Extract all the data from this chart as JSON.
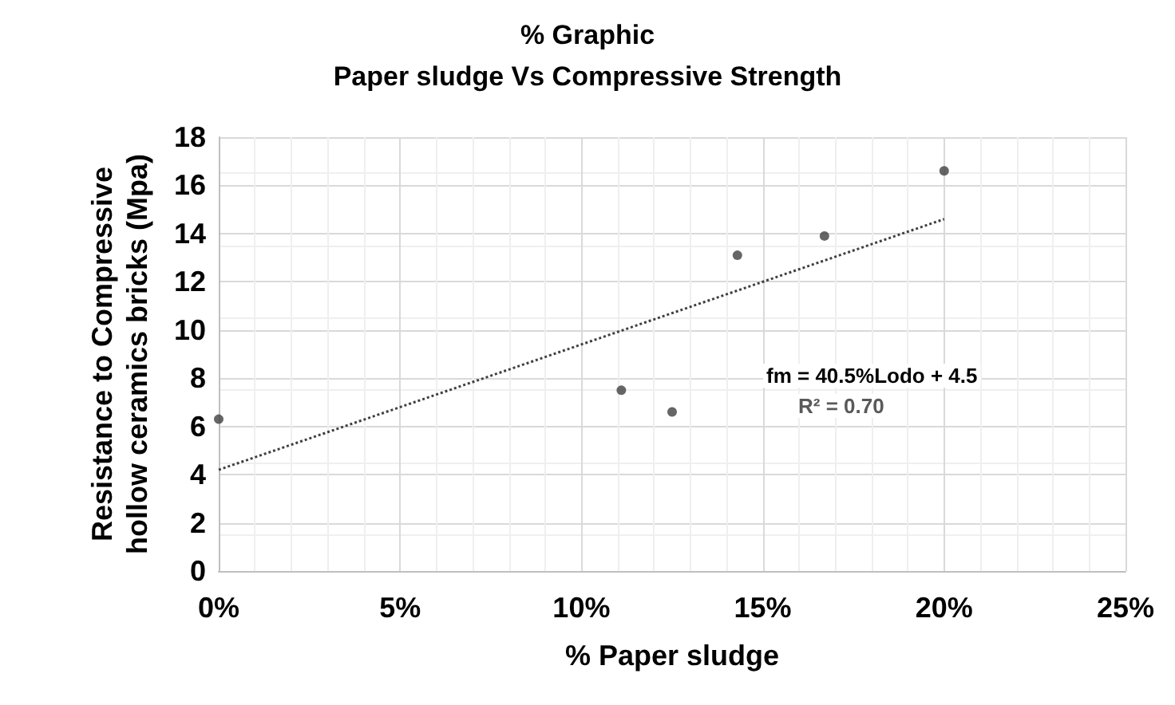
{
  "chart_data": {
    "type": "scatter",
    "title": "% Graphic\nPaper sludge Vs Compressive Strength",
    "xlabel": "% Paper sludge",
    "ylabel": "Resistance to Compressive\nhollow ceramics bricks (Mpa)",
    "xlim": [
      0,
      0.25
    ],
    "xticks": [
      {
        "value": 0,
        "label": "0%"
      },
      {
        "value": 0.05,
        "label": "5%"
      },
      {
        "value": 0.1,
        "label": "10%"
      },
      {
        "value": 0.15,
        "label": "15%"
      },
      {
        "value": 0.2,
        "label": "20%"
      },
      {
        "value": 0.25,
        "label": "25%"
      }
    ],
    "ylim": [
      0,
      18
    ],
    "yticks": [
      0,
      2,
      4,
      6,
      8,
      10,
      12,
      14,
      16,
      18
    ],
    "grid": true,
    "marker": "circle",
    "series": [
      {
        "color": "#404040",
        "x": [
          0,
          0.111,
          0.125,
          0.143,
          0.167,
          0.2
        ],
        "values": [
          6.3,
          7.5,
          6.6,
          13.1,
          13.9,
          16.6
        ]
      },
      {
        "type": "line",
        "color": "#404040",
        "line_style": "dotted",
        "marker": "none",
        "x": [
          0,
          0.2
        ],
        "values": [
          4.2,
          14.6
        ]
      }
    ],
    "annotations": [
      "fm = 40.5%Lodo + 4.5",
      "R² = 0.70"
    ]
  }
}
